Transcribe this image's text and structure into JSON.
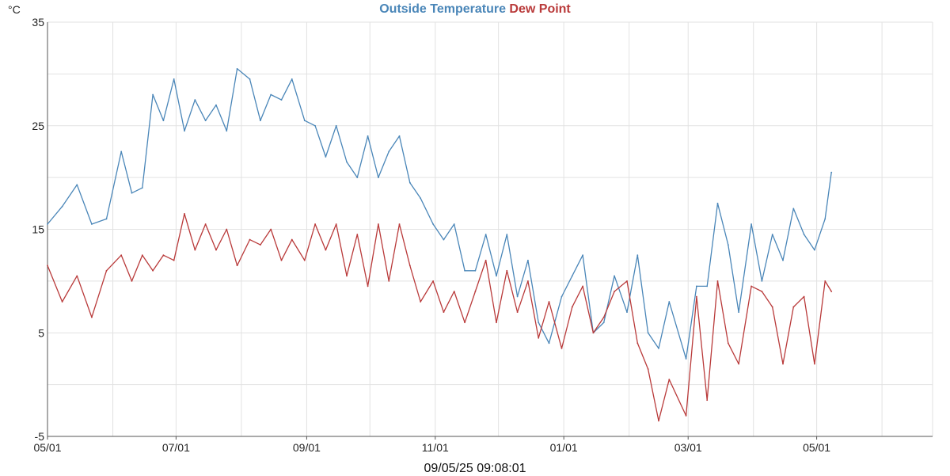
{
  "title": {
    "series1": "Outside Temperature",
    "series2": "Dew Point"
  },
  "unit_label": "°C",
  "timestamp": "09/05/25 09:08:01",
  "colors": {
    "temperature": "#4a86b8",
    "dewpoint": "#b93a3a",
    "grid": "#e2e2e2",
    "axis": "#555555"
  },
  "chart_data": {
    "type": "line",
    "ylim": [
      -5,
      35
    ],
    "yticks": [
      "35",
      "25",
      "15",
      "5",
      "-5"
    ],
    "ytick_values": [
      35,
      25,
      15,
      5,
      -5
    ],
    "xlim": [
      "2024-05-01",
      "2025-06-25"
    ],
    "xticks": [
      {
        "label": "05/01",
        "date": "2024-05-01"
      },
      {
        "label": "07/01",
        "date": "2024-07-01"
      },
      {
        "label": "09/01",
        "date": "2024-09-01"
      },
      {
        "label": "11/01",
        "date": "2024-11-01"
      },
      {
        "label": "01/01",
        "date": "2025-01-01"
      },
      {
        "label": "03/01",
        "date": "2025-03-01"
      },
      {
        "label": "05/01",
        "date": "2025-05-01"
      }
    ],
    "grid": true,
    "series": [
      {
        "name": "Outside Temperature",
        "x": [
          "2024-05-01",
          "2024-05-08",
          "2024-05-15",
          "2024-05-22",
          "2024-05-29",
          "2024-06-05",
          "2024-06-10",
          "2024-06-15",
          "2024-06-20",
          "2024-06-25",
          "2024-06-30",
          "2024-07-05",
          "2024-07-10",
          "2024-07-15",
          "2024-07-20",
          "2024-07-25",
          "2024-07-30",
          "2024-08-05",
          "2024-08-10",
          "2024-08-15",
          "2024-08-20",
          "2024-08-25",
          "2024-08-31",
          "2024-09-05",
          "2024-09-10",
          "2024-09-15",
          "2024-09-20",
          "2024-09-25",
          "2024-09-30",
          "2024-10-05",
          "2024-10-10",
          "2024-10-15",
          "2024-10-20",
          "2024-10-25",
          "2024-10-31",
          "2024-11-05",
          "2024-11-10",
          "2024-11-15",
          "2024-11-20",
          "2024-11-25",
          "2024-11-30",
          "2024-12-05",
          "2024-12-10",
          "2024-12-15",
          "2024-12-20",
          "2024-12-25",
          "2024-12-31",
          "2025-01-05",
          "2025-01-10",
          "2025-01-15",
          "2025-01-20",
          "2025-01-25",
          "2025-01-31",
          "2025-02-05",
          "2025-02-10",
          "2025-02-15",
          "2025-02-20",
          "2025-02-28",
          "2025-03-05",
          "2025-03-10",
          "2025-03-15",
          "2025-03-20",
          "2025-03-25",
          "2025-03-31",
          "2025-04-05",
          "2025-04-10",
          "2025-04-15",
          "2025-04-20",
          "2025-04-25",
          "2025-04-30",
          "2025-05-05",
          "2025-05-08"
        ],
        "y": [
          15.5,
          17.2,
          19.3,
          15.5,
          16,
          22.5,
          18.5,
          19,
          28,
          25.5,
          29.5,
          24.5,
          27.5,
          25.5,
          27,
          24.5,
          30.5,
          29.5,
          25.5,
          28,
          27.5,
          29.5,
          25.5,
          25,
          22,
          25,
          21.5,
          20,
          24,
          20,
          22.5,
          24,
          19.5,
          18,
          15.5,
          14,
          15.5,
          11,
          11,
          14.5,
          10.5,
          14.5,
          8.5,
          12,
          6,
          4,
          8.5,
          10.5,
          12.5,
          5,
          6,
          10.5,
          7,
          12.5,
          5,
          3.5,
          8,
          2.5,
          9.5,
          9.5,
          17.5,
          13.5,
          7,
          15.5,
          10,
          14.5,
          12,
          17,
          14.5,
          13,
          16,
          20.5
        ]
      },
      {
        "name": "Dew Point",
        "x": [
          "2024-05-01",
          "2024-05-08",
          "2024-05-15",
          "2024-05-22",
          "2024-05-29",
          "2024-06-05",
          "2024-06-10",
          "2024-06-15",
          "2024-06-20",
          "2024-06-25",
          "2024-06-30",
          "2024-07-05",
          "2024-07-10",
          "2024-07-15",
          "2024-07-20",
          "2024-07-25",
          "2024-07-30",
          "2024-08-05",
          "2024-08-10",
          "2024-08-15",
          "2024-08-20",
          "2024-08-25",
          "2024-08-31",
          "2024-09-05",
          "2024-09-10",
          "2024-09-15",
          "2024-09-20",
          "2024-09-25",
          "2024-09-30",
          "2024-10-05",
          "2024-10-10",
          "2024-10-15",
          "2024-10-20",
          "2024-10-25",
          "2024-10-31",
          "2024-11-05",
          "2024-11-10",
          "2024-11-15",
          "2024-11-20",
          "2024-11-25",
          "2024-11-30",
          "2024-12-05",
          "2024-12-10",
          "2024-12-15",
          "2024-12-20",
          "2024-12-25",
          "2024-12-31",
          "2025-01-05",
          "2025-01-10",
          "2025-01-15",
          "2025-01-20",
          "2025-01-25",
          "2025-01-31",
          "2025-02-05",
          "2025-02-10",
          "2025-02-15",
          "2025-02-20",
          "2025-02-28",
          "2025-03-05",
          "2025-03-10",
          "2025-03-15",
          "2025-03-20",
          "2025-03-25",
          "2025-03-31",
          "2025-04-05",
          "2025-04-10",
          "2025-04-15",
          "2025-04-20",
          "2025-04-25",
          "2025-04-30",
          "2025-05-05",
          "2025-05-08"
        ],
        "y": [
          11.5,
          8,
          10.5,
          6.5,
          11,
          12.5,
          10,
          12.5,
          11,
          12.5,
          12,
          16.5,
          13,
          15.5,
          13,
          15,
          11.5,
          14,
          13.5,
          15,
          12,
          14,
          12,
          15.5,
          13,
          15.5,
          10.5,
          14.5,
          9.5,
          15.5,
          10,
          15.5,
          11.5,
          8,
          10,
          7,
          9,
          6,
          9,
          12,
          6,
          11,
          7,
          10,
          4.5,
          8,
          3.5,
          7.5,
          9.5,
          5,
          6.5,
          9,
          10,
          4,
          1.5,
          -3.5,
          0.5,
          -3,
          8.5,
          -1.5,
          10,
          4,
          2,
          9.5,
          9,
          7.5,
          2,
          7.5,
          8.5,
          2,
          10,
          9
        ]
      }
    ]
  }
}
